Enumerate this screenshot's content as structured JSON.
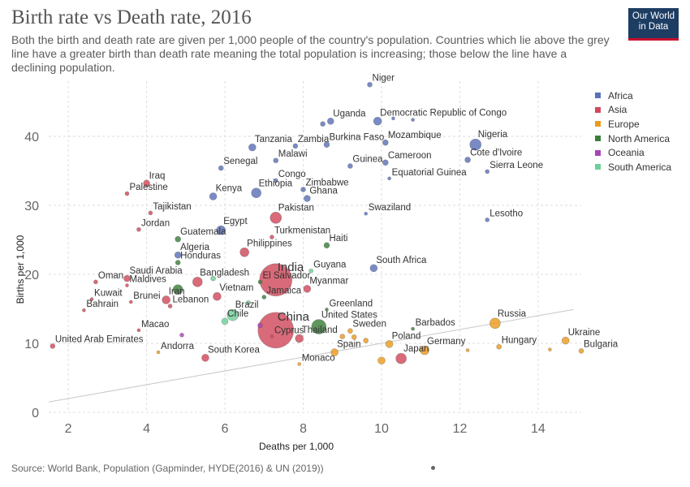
{
  "header": {
    "title": "Birth rate vs Death rate, 2016",
    "subtitle": "Both the birth and death rate are given per 1,000 people of the country's population. Countries which lie above the grey line have a greater birth than death rate meaning the total population is increasing; those below the line have a declining population.",
    "logo_line1": "Our World",
    "logo_line2": "in Data"
  },
  "footer": {
    "source": "Source: World Bank, Population (Gapminder, HYDE(2016) & UN (2019))"
  },
  "colors": {
    "Africa": "#5b72b8",
    "Asia": "#d1495b",
    "Europe": "#eb9b1c",
    "North America": "#3b7f3b",
    "Oceania": "#a945b5",
    "South America": "#6fcf97",
    "reference_line": "#c8c8c8",
    "grid": "#dddddd"
  },
  "chart_data": {
    "type": "scatter",
    "title": "Birth rate vs Death rate, 2016",
    "xlabel": "Deaths per 1,000",
    "ylabel": "Births per 1,000",
    "xlim": [
      1.5,
      15.1
    ],
    "ylim": [
      0,
      48
    ],
    "xticks": [
      2,
      4,
      6,
      8,
      10,
      12,
      14
    ],
    "yticks": [
      0,
      10,
      20,
      30,
      40
    ],
    "grid": true,
    "legend_placement": "right",
    "legend": [
      "Africa",
      "Asia",
      "Europe",
      "North America",
      "Oceania",
      "South America"
    ],
    "reference_line": "births = deaths",
    "points": [
      {
        "label": "Niger",
        "x": 9.7,
        "y": 47.5,
        "region": "Africa",
        "size": 3
      },
      {
        "label": "Uganda",
        "x": 8.7,
        "y": 42.2,
        "region": "Africa",
        "size": 4
      },
      {
        "label": "",
        "x": 8.5,
        "y": 41.8,
        "region": "Africa",
        "size": 3
      },
      {
        "label": "Democratic Republic of Congo",
        "x": 9.9,
        "y": 42.2,
        "region": "Africa",
        "size": 5
      },
      {
        "label": "",
        "x": 10.3,
        "y": 42.6,
        "region": "Africa",
        "size": 2
      },
      {
        "label": "",
        "x": 10.8,
        "y": 42.4,
        "region": "Africa",
        "size": 2
      },
      {
        "label": "Tanzania",
        "x": 6.7,
        "y": 38.4,
        "region": "Africa",
        "size": 4.5
      },
      {
        "label": "Zambia",
        "x": 7.8,
        "y": 38.6,
        "region": "Africa",
        "size": 3
      },
      {
        "label": "Burkina Faso",
        "x": 8.6,
        "y": 38.8,
        "region": "Africa",
        "size": 3.5
      },
      {
        "label": "Mozambique",
        "x": 10.1,
        "y": 39.1,
        "region": "Africa",
        "size": 3.5
      },
      {
        "label": "Nigeria",
        "x": 12.4,
        "y": 38.8,
        "region": "Africa",
        "size": 7
      },
      {
        "label": "Malawi",
        "x": 7.3,
        "y": 36.5,
        "region": "Africa",
        "size": 3
      },
      {
        "label": "Guinea",
        "x": 9.2,
        "y": 35.7,
        "region": "Africa",
        "size": 3
      },
      {
        "label": "Cameroon",
        "x": 10.1,
        "y": 36.2,
        "region": "Africa",
        "size": 3.5
      },
      {
        "label": "Cote d'Ivoire",
        "x": 12.2,
        "y": 36.6,
        "region": "Africa",
        "size": 3.5
      },
      {
        "label": "Senegal",
        "x": 5.9,
        "y": 35.4,
        "region": "Africa",
        "size": 3
      },
      {
        "label": "Sierra Leone",
        "x": 12.7,
        "y": 34.9,
        "region": "Africa",
        "size": 2.5
      },
      {
        "label": "Equatorial Guinea",
        "x": 10.2,
        "y": 33.9,
        "region": "Africa",
        "size": 2
      },
      {
        "label": "Congo",
        "x": 7.3,
        "y": 33.6,
        "region": "Africa",
        "size": 2.5
      },
      {
        "label": "Zimbabwe",
        "x": 8.0,
        "y": 32.3,
        "region": "Africa",
        "size": 3
      },
      {
        "label": "Ethiopia",
        "x": 6.8,
        "y": 31.8,
        "region": "Africa",
        "size": 6
      },
      {
        "label": "Kenya",
        "x": 5.7,
        "y": 31.3,
        "region": "Africa",
        "size": 4.5
      },
      {
        "label": "Ghana",
        "x": 8.1,
        "y": 31.0,
        "region": "Africa",
        "size": 4
      },
      {
        "label": "Swaziland",
        "x": 9.6,
        "y": 28.8,
        "region": "Africa",
        "size": 2
      },
      {
        "label": "Lesotho",
        "x": 12.7,
        "y": 27.9,
        "region": "Africa",
        "size": 2.5
      },
      {
        "label": "Egypt",
        "x": 5.9,
        "y": 26.4,
        "region": "Africa",
        "size": 5.5
      },
      {
        "label": "Algeria",
        "x": 4.8,
        "y": 22.8,
        "region": "Africa",
        "size": 4
      },
      {
        "label": "South Africa",
        "x": 9.8,
        "y": 20.9,
        "region": "Africa",
        "size": 4.5
      },
      {
        "label": "Iraq",
        "x": 4.0,
        "y": 33.2,
        "region": "Asia",
        "size": 4
      },
      {
        "label": "Palestine",
        "x": 3.5,
        "y": 31.7,
        "region": "Asia",
        "size": 2.5
      },
      {
        "label": "Tajikistan",
        "x": 4.1,
        "y": 28.9,
        "region": "Asia",
        "size": 2.5
      },
      {
        "label": "Pakistan",
        "x": 7.3,
        "y": 28.2,
        "region": "Asia",
        "size": 7
      },
      {
        "label": "Jordan",
        "x": 3.8,
        "y": 26.5,
        "region": "Asia",
        "size": 2.5
      },
      {
        "label": "Turkmenistan",
        "x": 7.2,
        "y": 25.4,
        "region": "Asia",
        "size": 2.5
      },
      {
        "label": "Philippines",
        "x": 6.5,
        "y": 23.2,
        "region": "Asia",
        "size": 5.5
      },
      {
        "label": "India",
        "x": 7.3,
        "y": 19.2,
        "region": "Asia",
        "size": 20
      },
      {
        "label": "Saudi Arabia",
        "x": 3.5,
        "y": 19.4,
        "region": "Asia",
        "size": 4
      },
      {
        "label": "Oman",
        "x": 2.7,
        "y": 18.9,
        "region": "Asia",
        "size": 2.5
      },
      {
        "label": "Maldives",
        "x": 3.5,
        "y": 18.4,
        "region": "Asia",
        "size": 2
      },
      {
        "label": "Bangladesh",
        "x": 5.3,
        "y": 18.9,
        "region": "Asia",
        "size": 6
      },
      {
        "label": "Myanmar",
        "x": 8.1,
        "y": 17.9,
        "region": "Asia",
        "size": 4.5
      },
      {
        "label": "Kuwait",
        "x": 2.6,
        "y": 16.4,
        "region": "Asia",
        "size": 2
      },
      {
        "label": "Brunei",
        "x": 3.6,
        "y": 16.0,
        "region": "Asia",
        "size": 2
      },
      {
        "label": "Iran",
        "x": 4.5,
        "y": 16.3,
        "region": "Asia",
        "size": 5
      },
      {
        "label": "Vietnam",
        "x": 5.8,
        "y": 16.8,
        "region": "Asia",
        "size": 5
      },
      {
        "label": "Lebanon",
        "x": 4.6,
        "y": 15.4,
        "region": "Asia",
        "size": 2.5
      },
      {
        "label": "Bahrain",
        "x": 2.4,
        "y": 14.8,
        "region": "Asia",
        "size": 2
      },
      {
        "label": "China",
        "x": 7.3,
        "y": 11.9,
        "region": "Asia",
        "size": 22
      },
      {
        "label": "Macao",
        "x": 3.8,
        "y": 11.9,
        "region": "Asia",
        "size": 2
      },
      {
        "label": "Thailand",
        "x": 7.9,
        "y": 10.7,
        "region": "Asia",
        "size": 5
      },
      {
        "label": "United Arab Emirates",
        "x": 1.6,
        "y": 9.6,
        "region": "Asia",
        "size": 3
      },
      {
        "label": "South Korea",
        "x": 5.5,
        "y": 7.9,
        "region": "Asia",
        "size": 4.5
      },
      {
        "label": "Japan",
        "x": 10.5,
        "y": 7.8,
        "region": "Asia",
        "size": 6.5
      },
      {
        "label": "Cyprus",
        "x": 7.2,
        "y": 11.0,
        "region": "Asia",
        "size": 2
      },
      {
        "label": "Russia",
        "x": 12.9,
        "y": 12.9,
        "region": "Europe",
        "size": 6.5
      },
      {
        "label": "Barbados",
        "x": 10.8,
        "y": 12.1,
        "region": "North America",
        "size": 2
      },
      {
        "label": "Sweden",
        "x": 9.2,
        "y": 11.8,
        "region": "Europe",
        "size": 3
      },
      {
        "label": "Poland",
        "x": 10.2,
        "y": 9.9,
        "region": "Europe",
        "size": 4.5
      },
      {
        "label": "Germany",
        "x": 11.1,
        "y": 9.0,
        "region": "Europe",
        "size": 5.5
      },
      {
        "label": "Hungary",
        "x": 13.0,
        "y": 9.5,
        "region": "Europe",
        "size": 3
      },
      {
        "label": "Ukraine",
        "x": 14.7,
        "y": 10.4,
        "region": "Europe",
        "size": 4.5
      },
      {
        "label": "Bulgaria",
        "x": 15.1,
        "y": 8.9,
        "region": "Europe",
        "size": 3
      },
      {
        "label": "Spain",
        "x": 8.8,
        "y": 8.7,
        "region": "Europe",
        "size": 4.5
      },
      {
        "label": "Monaco",
        "x": 7.9,
        "y": 7.0,
        "region": "Europe",
        "size": 2
      },
      {
        "label": "Andorra",
        "x": 4.3,
        "y": 8.7,
        "region": "Europe",
        "size": 2
      },
      {
        "label": "",
        "x": 10.0,
        "y": 7.5,
        "region": "Europe",
        "size": 4.5
      },
      {
        "label": "",
        "x": 9.6,
        "y": 10.4,
        "region": "Europe",
        "size": 3
      },
      {
        "label": "",
        "x": 9.3,
        "y": 10.9,
        "region": "Europe",
        "size": 3
      },
      {
        "label": "",
        "x": 9.0,
        "y": 11.0,
        "region": "Europe",
        "size": 3
      },
      {
        "label": "",
        "x": 12.2,
        "y": 9.0,
        "region": "Europe",
        "size": 2
      },
      {
        "label": "",
        "x": 14.3,
        "y": 9.1,
        "region": "Europe",
        "size": 2
      },
      {
        "label": "United States",
        "x": 8.4,
        "y": 12.4,
        "region": "North America",
        "size": 9
      },
      {
        "label": "Greenland",
        "x": 8.6,
        "y": 14.9,
        "region": "North America",
        "size": 2
      },
      {
        "label": "Haiti",
        "x": 8.6,
        "y": 24.2,
        "region": "North America",
        "size": 3.5
      },
      {
        "label": "Guatemala",
        "x": 4.8,
        "y": 25.1,
        "region": "North America",
        "size": 3.5
      },
      {
        "label": "Honduras",
        "x": 4.8,
        "y": 21.7,
        "region": "North America",
        "size": 3
      },
      {
        "label": "El Salvador",
        "x": 6.9,
        "y": 18.9,
        "region": "North America",
        "size": 2.5
      },
      {
        "label": "",
        "x": 4.8,
        "y": 17.8,
        "region": "North America",
        "size": 6
      },
      {
        "label": "Jamaica",
        "x": 7.0,
        "y": 16.7,
        "region": "North America",
        "size": 2.5
      },
      {
        "label": "",
        "x": 6.9,
        "y": 12.6,
        "region": "Oceania",
        "size": 3
      },
      {
        "label": "",
        "x": 4.9,
        "y": 11.2,
        "region": "Oceania",
        "size": 2.5
      },
      {
        "label": "Guyana",
        "x": 8.2,
        "y": 20.5,
        "region": "South America",
        "size": 2.5
      },
      {
        "label": "Brazil",
        "x": 6.2,
        "y": 14.1,
        "region": "South America",
        "size": 7
      },
      {
        "label": "Chile",
        "x": 6.0,
        "y": 13.2,
        "region": "South America",
        "size": 4
      },
      {
        "label": "",
        "x": 5.7,
        "y": 19.4,
        "region": "South America",
        "size": 3
      },
      {
        "label": "",
        "x": 6.6,
        "y": 15.9,
        "region": "South America",
        "size": 2.5
      }
    ]
  }
}
